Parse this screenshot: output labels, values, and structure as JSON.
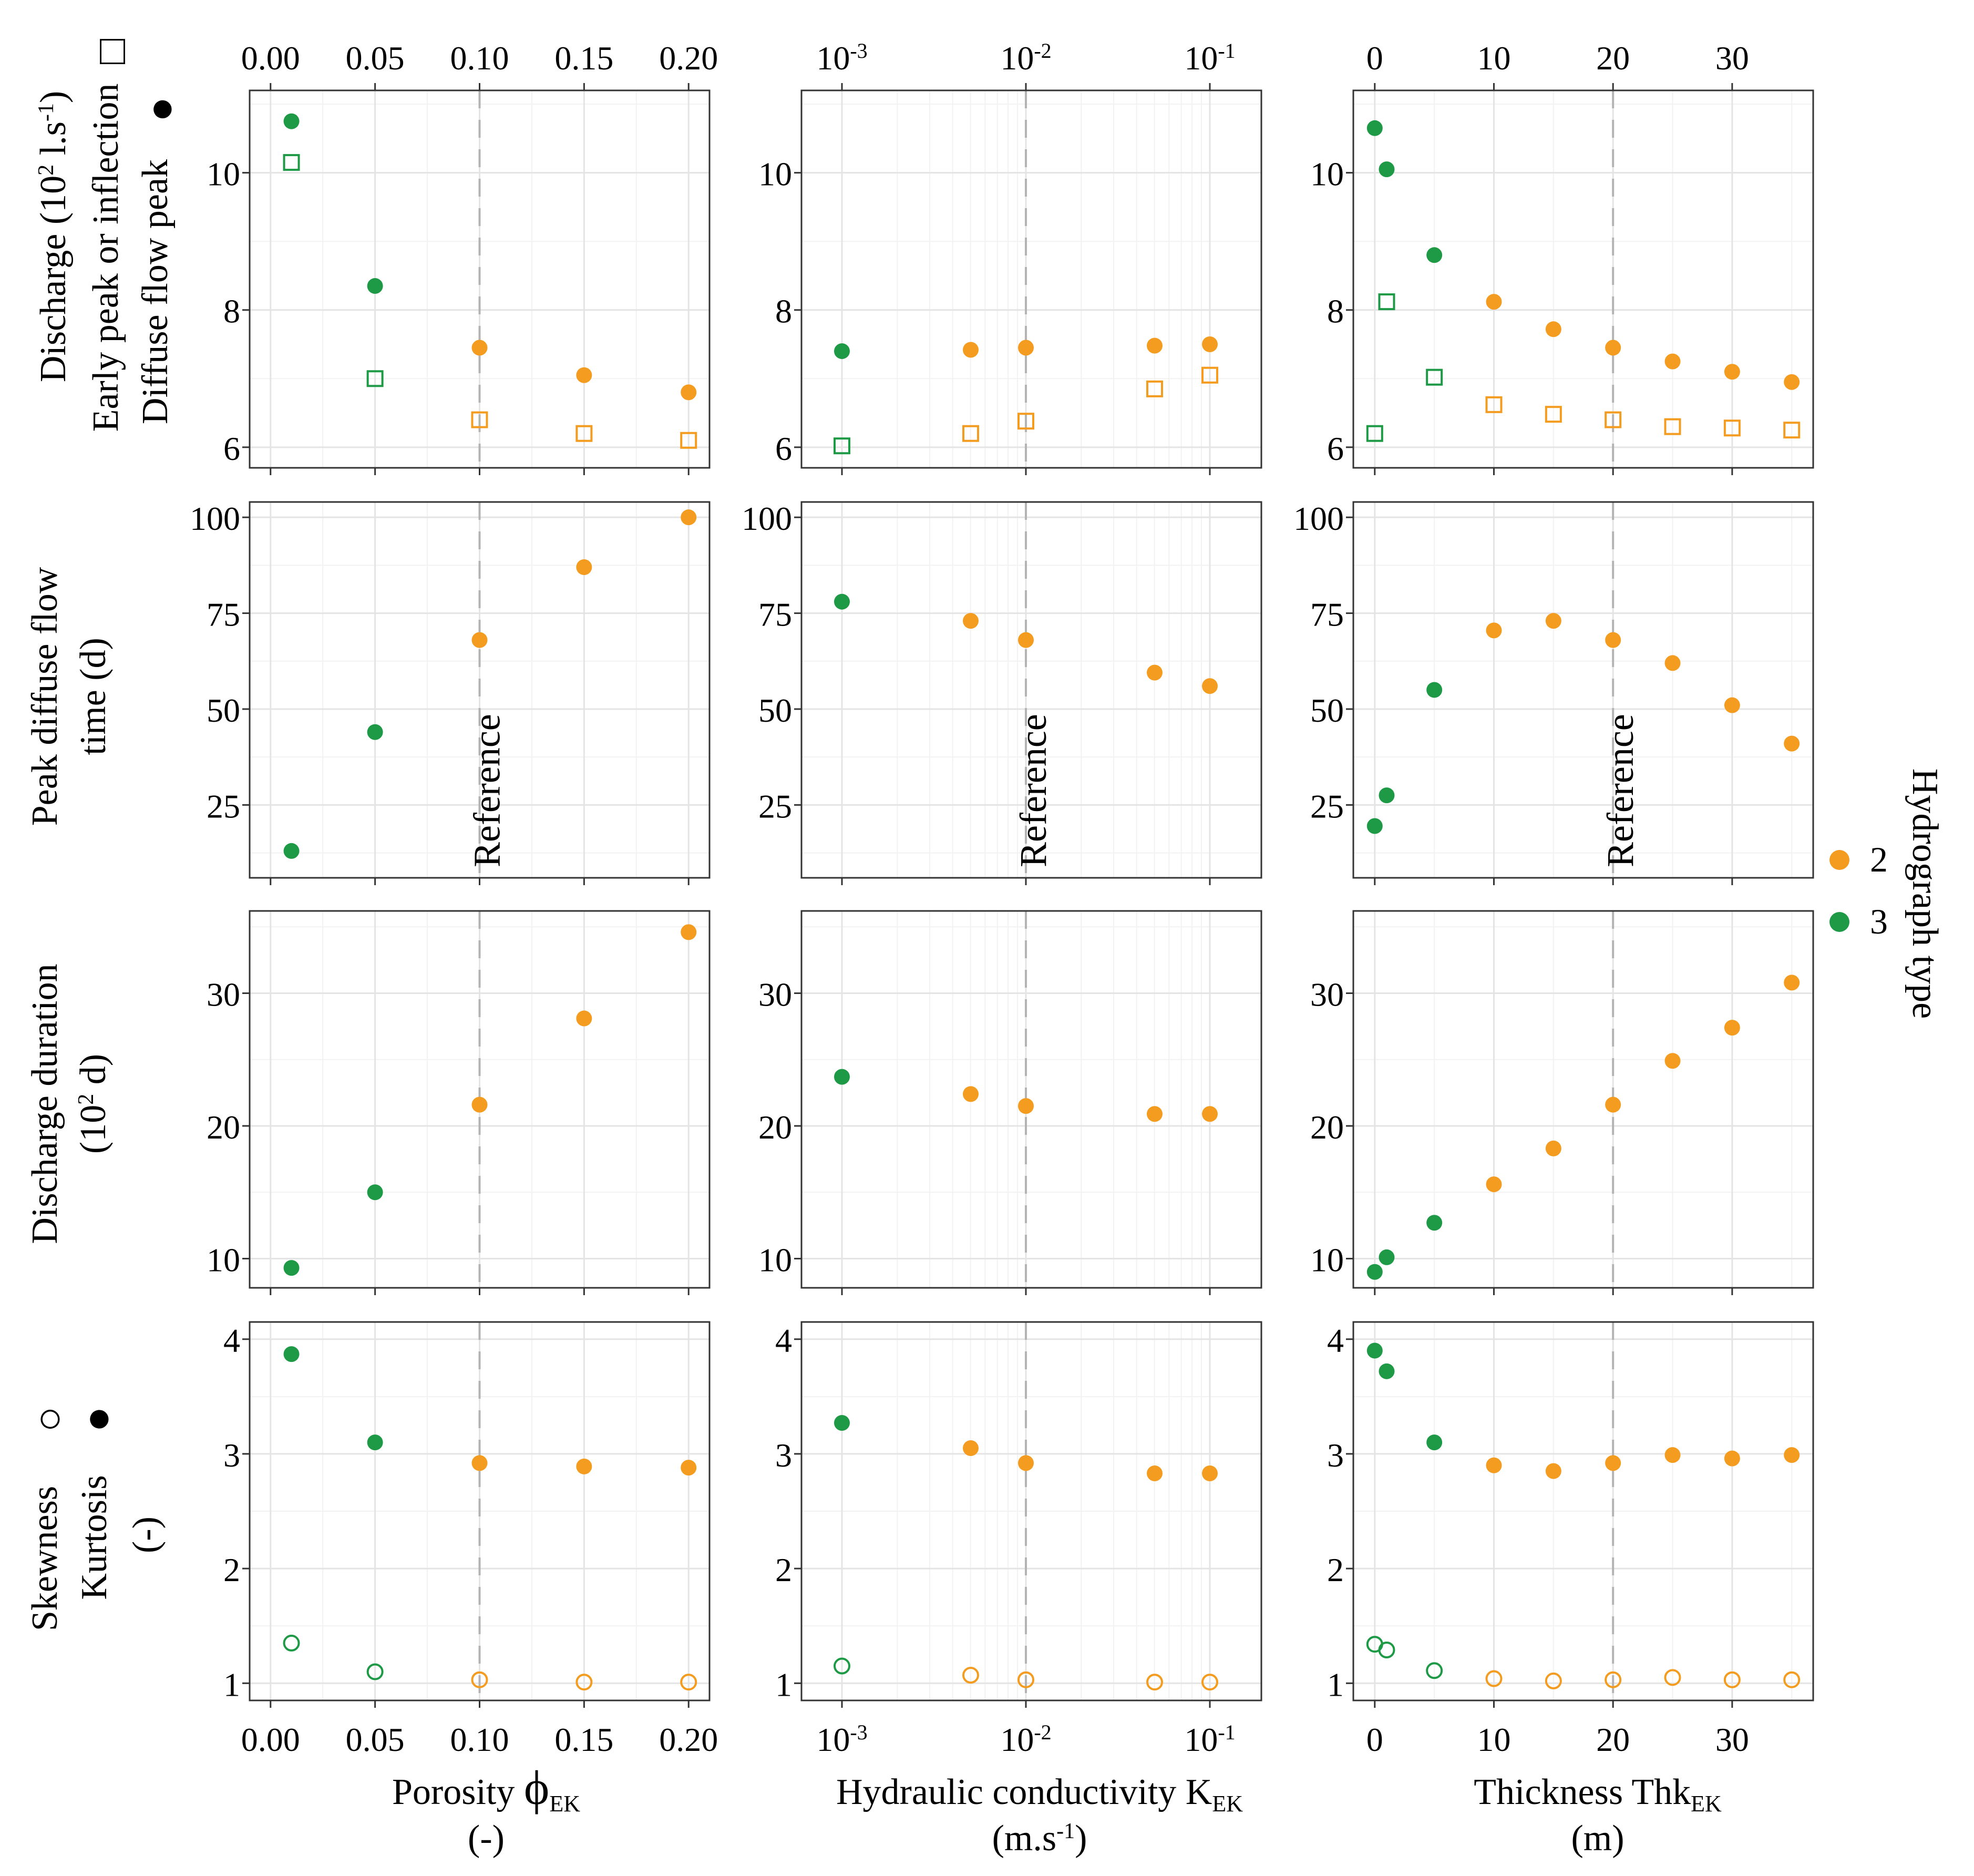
{
  "colors": {
    "type2": "#f39c1f",
    "type3": "#1e9a46",
    "reference": "#b3b3b3",
    "grid_major": "#e4e4e4",
    "grid_minor": "#f2f2f2",
    "frame": "#333333",
    "tick_label": "#111111"
  },
  "columns": [
    {
      "id": "porosity",
      "scale": "linear",
      "xlim": [
        -0.01,
        0.21
      ],
      "ticks": [
        0.0,
        0.05,
        0.1,
        0.15,
        0.2
      ],
      "tick_labels": [
        "0.00",
        "0.05",
        "0.10",
        "0.15",
        "0.20"
      ],
      "reference": 0.1,
      "xlabel_main": "Porosity ",
      "xlabel_symbol": "ϕ",
      "xlabel_sub": "EK",
      "xlabel_line2": "(-)"
    },
    {
      "id": "conductivity",
      "scale": "log",
      "xlim": [
        -3.22,
        -0.72
      ],
      "ticks": [
        -3,
        -2,
        -1
      ],
      "tick_labels": [
        {
          "base": "10",
          "exp": "-3"
        },
        {
          "base": "10",
          "exp": "-2"
        },
        {
          "base": "10",
          "exp": "-1"
        }
      ],
      "reference": -2,
      "xlabel_main": "Hydraulic conductivity K",
      "xlabel_sub": "EK",
      "xlabel_line2_pre": "(m.s",
      "xlabel_line2_sup": "-1",
      "xlabel_line2_post": ")"
    },
    {
      "id": "thickness",
      "scale": "linear",
      "xlim": [
        -1.8,
        36.8
      ],
      "ticks": [
        0,
        10,
        20,
        30
      ],
      "tick_labels": [
        "0",
        "10",
        "20",
        "30"
      ],
      "reference": 20,
      "xlabel_main": "Thickness Thk",
      "xlabel_sub": "EK",
      "xlabel_line2": "(m)"
    }
  ],
  "rows": [
    {
      "id": "discharge",
      "ylim": [
        5.7,
        11.2
      ],
      "ticks": [
        6,
        8,
        10
      ],
      "tick_labels": [
        "6",
        "8",
        "10"
      ],
      "ylabel_line1_pre": "Discharge  (10",
      "ylabel_line1_sup": "2",
      "ylabel_line1_mid": " l.s",
      "ylabel_line1_sup2": "-1",
      "ylabel_line1_post": ")",
      "ylabel_line2": "Early peak or inflection",
      "ylabel_line2_marker": "□",
      "ylabel_line3": "Diffuse flow peak",
      "ylabel_line3_marker": "●"
    },
    {
      "id": "peak_time",
      "ylim": [
        6,
        104
      ],
      "ticks": [
        25,
        50,
        75,
        100
      ],
      "tick_labels": [
        "25",
        "50",
        "75",
        "100"
      ],
      "ylabel_line1": "Peak diffuse flow",
      "ylabel_line2": "time (d)",
      "reference_label": "Reference"
    },
    {
      "id": "duration",
      "ylim": [
        7.8,
        36.2
      ],
      "ticks": [
        10,
        20,
        30
      ],
      "tick_labels": [
        "10",
        "20",
        "30"
      ],
      "ylabel_line1": "Discharge duration",
      "ylabel_line2_pre": "(10",
      "ylabel_line2_sup": "2",
      "ylabel_line2_post": " d)"
    },
    {
      "id": "shape",
      "ylim": [
        0.85,
        4.15
      ],
      "ticks": [
        1,
        2,
        3,
        4
      ],
      "tick_labels": [
        "1",
        "2",
        "3",
        "4"
      ],
      "ylabel_line1": "Skewness",
      "ylabel_line1_marker": "○",
      "ylabel_line2": "Kurtosis",
      "ylabel_line2_marker": "●",
      "ylabel_line3": "(-)"
    }
  ],
  "legend": {
    "title": "Hydrograph type",
    "items": [
      {
        "label": "2",
        "color": "#f39c1f"
      },
      {
        "label": "3",
        "color": "#1e9a46"
      }
    ]
  },
  "chart_data": [
    {
      "type": "scatter",
      "panel": "discharge-porosity",
      "xlabel": "Porosity ϕEK (-)",
      "ylabel": "Discharge (10² l.s⁻¹)",
      "x": [
        0.01,
        0.05,
        0.1,
        0.15,
        0.2
      ],
      "series": [
        {
          "name": "Diffuse flow peak",
          "marker": "filled-circle",
          "values": [
            10.75,
            8.35,
            7.45,
            7.05,
            6.8
          ],
          "hydrograph_type": [
            3,
            3,
            2,
            2,
            2
          ]
        },
        {
          "name": "Early peak or inflection",
          "marker": "open-square",
          "values": [
            10.15,
            7.0,
            6.4,
            6.2,
            6.1
          ],
          "hydrograph_type": [
            3,
            3,
            2,
            2,
            2
          ]
        }
      ]
    },
    {
      "type": "scatter",
      "panel": "discharge-conductivity",
      "x_log10": [
        -3.0,
        -2.3,
        -2.0,
        -1.3,
        -1.0
      ],
      "series": [
        {
          "name": "Diffuse flow peak",
          "marker": "filled-circle",
          "values": [
            7.4,
            7.42,
            7.45,
            7.48,
            7.5
          ],
          "hydrograph_type": [
            3,
            2,
            2,
            2,
            2
          ]
        },
        {
          "name": "Early peak or inflection",
          "marker": "open-square",
          "values": [
            6.02,
            6.2,
            6.38,
            6.85,
            7.05
          ],
          "hydrograph_type": [
            3,
            2,
            2,
            2,
            2
          ]
        }
      ]
    },
    {
      "type": "scatter",
      "panel": "discharge-thickness",
      "x": [
        0,
        1,
        5,
        10,
        15,
        20,
        25,
        30,
        35
      ],
      "series": [
        {
          "name": "Diffuse flow peak",
          "marker": "filled-circle",
          "values": [
            10.65,
            10.05,
            8.8,
            8.12,
            7.72,
            7.45,
            7.25,
            7.1,
            6.95
          ],
          "hydrograph_type": [
            3,
            3,
            3,
            2,
            2,
            2,
            2,
            2,
            2
          ]
        },
        {
          "name": "Early peak or inflection",
          "marker": "open-square",
          "values": [
            6.2,
            8.12,
            7.02,
            6.62,
            6.48,
            6.4,
            6.3,
            6.28,
            6.25
          ],
          "hydrograph_type": [
            3,
            3,
            3,
            2,
            2,
            2,
            2,
            2,
            2
          ]
        }
      ]
    },
    {
      "type": "scatter",
      "panel": "peak_time-porosity",
      "x": [
        0.01,
        0.05,
        0.1,
        0.15,
        0.2
      ],
      "series": [
        {
          "name": "Peak diffuse flow time (d)",
          "marker": "filled-circle",
          "values": [
            13,
            44,
            68,
            87,
            100
          ],
          "hydrograph_type": [
            3,
            3,
            2,
            2,
            2
          ]
        }
      ]
    },
    {
      "type": "scatter",
      "panel": "peak_time-conductivity",
      "x_log10": [
        -3.0,
        -2.3,
        -2.0,
        -1.3,
        -1.0
      ],
      "series": [
        {
          "name": "Peak diffuse flow time (d)",
          "marker": "filled-circle",
          "values": [
            78,
            73,
            68,
            59.5,
            56
          ],
          "hydrograph_type": [
            3,
            2,
            2,
            2,
            2
          ]
        }
      ]
    },
    {
      "type": "scatter",
      "panel": "peak_time-thickness",
      "x": [
        0,
        1,
        5,
        10,
        15,
        20,
        25,
        30,
        35
      ],
      "series": [
        {
          "name": "Peak diffuse flow time (d)",
          "marker": "filled-circle",
          "values": [
            19.5,
            27.5,
            55,
            70.5,
            73,
            68,
            62,
            51,
            41
          ],
          "hydrograph_type": [
            3,
            3,
            3,
            2,
            2,
            2,
            2,
            2,
            2
          ]
        }
      ]
    },
    {
      "type": "scatter",
      "panel": "duration-porosity",
      "x": [
        0.01,
        0.05,
        0.1,
        0.15,
        0.2
      ],
      "series": [
        {
          "name": "Discharge duration (10² d)",
          "marker": "filled-circle",
          "values": [
            9.3,
            15,
            21.6,
            28.1,
            34.6
          ],
          "hydrograph_type": [
            3,
            3,
            2,
            2,
            2
          ]
        }
      ]
    },
    {
      "type": "scatter",
      "panel": "duration-conductivity",
      "x_log10": [
        -3.0,
        -2.3,
        -2.0,
        -1.3,
        -1.0
      ],
      "series": [
        {
          "name": "Discharge duration (10² d)",
          "marker": "filled-circle",
          "values": [
            23.7,
            22.4,
            21.5,
            20.9,
            20.9
          ],
          "hydrograph_type": [
            3,
            2,
            2,
            2,
            2
          ]
        }
      ]
    },
    {
      "type": "scatter",
      "panel": "duration-thickness",
      "x": [
        0,
        1,
        5,
        10,
        15,
        20,
        25,
        30,
        35
      ],
      "series": [
        {
          "name": "Discharge duration (10² d)",
          "marker": "filled-circle",
          "values": [
            9.0,
            10.1,
            12.7,
            15.6,
            18.3,
            21.6,
            24.9,
            27.4,
            30.8
          ],
          "hydrograph_type": [
            3,
            3,
            3,
            2,
            2,
            2,
            2,
            2,
            2
          ]
        }
      ]
    },
    {
      "type": "scatter",
      "panel": "shape-porosity",
      "x": [
        0.01,
        0.05,
        0.1,
        0.15,
        0.2
      ],
      "series": [
        {
          "name": "Kurtosis",
          "marker": "filled-circle",
          "values": [
            3.87,
            3.1,
            2.92,
            2.89,
            2.88
          ],
          "hydrograph_type": [
            3,
            3,
            2,
            2,
            2
          ]
        },
        {
          "name": "Skewness",
          "marker": "open-circle",
          "values": [
            1.35,
            1.1,
            1.03,
            1.01,
            1.01
          ],
          "hydrograph_type": [
            3,
            3,
            2,
            2,
            2
          ]
        }
      ]
    },
    {
      "type": "scatter",
      "panel": "shape-conductivity",
      "x_log10": [
        -3.0,
        -2.3,
        -2.0,
        -1.3,
        -1.0
      ],
      "series": [
        {
          "name": "Kurtosis",
          "marker": "filled-circle",
          "values": [
            3.27,
            3.05,
            2.92,
            2.83,
            2.83
          ],
          "hydrograph_type": [
            3,
            2,
            2,
            2,
            2
          ]
        },
        {
          "name": "Skewness",
          "marker": "open-circle",
          "values": [
            1.15,
            1.07,
            1.03,
            1.01,
            1.01
          ],
          "hydrograph_type": [
            3,
            2,
            2,
            2,
            2
          ]
        }
      ]
    },
    {
      "type": "scatter",
      "panel": "shape-thickness",
      "x": [
        0,
        1,
        5,
        10,
        15,
        20,
        25,
        30,
        35
      ],
      "series": [
        {
          "name": "Kurtosis",
          "marker": "filled-circle",
          "values": [
            3.9,
            3.72,
            3.1,
            2.9,
            2.85,
            2.92,
            2.99,
            2.96,
            2.99
          ],
          "hydrograph_type": [
            3,
            3,
            3,
            2,
            2,
            2,
            2,
            2,
            2
          ]
        },
        {
          "name": "Skewness",
          "marker": "open-circle",
          "values": [
            1.34,
            1.29,
            1.11,
            1.04,
            1.02,
            1.03,
            1.05,
            1.03,
            1.03
          ],
          "hydrograph_type": [
            3,
            3,
            3,
            2,
            2,
            2,
            2,
            2,
            2
          ]
        }
      ]
    }
  ]
}
